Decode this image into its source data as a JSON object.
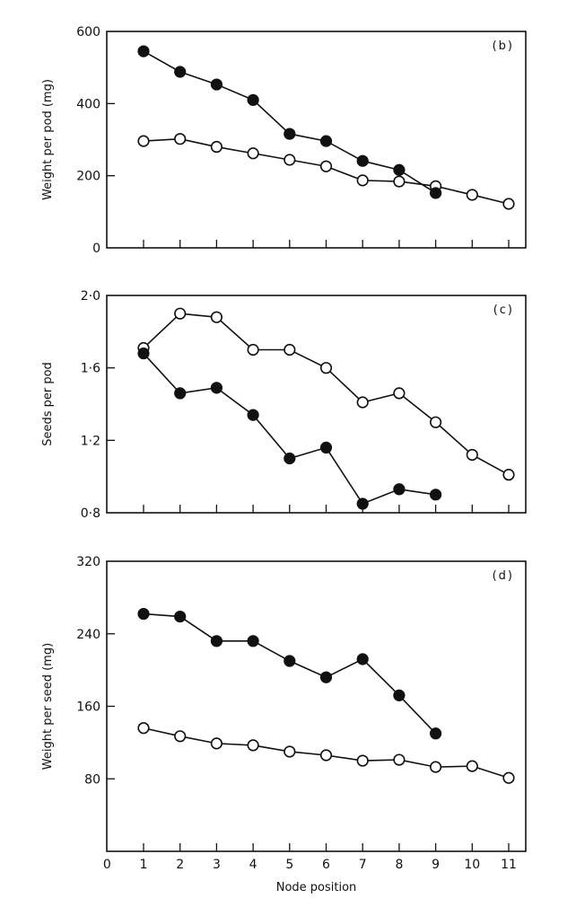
{
  "chart_data": [
    {
      "type": "line",
      "panel_label": "(b)",
      "ylabel": "Weight per pod (mg)",
      "ylim": [
        0,
        600
      ],
      "yticks": [
        0,
        200,
        400,
        600
      ],
      "ytick_labels": [
        "0",
        "200",
        "400",
        "600"
      ],
      "xlim": [
        0,
        11.5
      ],
      "xticks": [
        1,
        2,
        3,
        4,
        5,
        6,
        7,
        8,
        9,
        10,
        11
      ],
      "series": [
        {
          "name": "filled",
          "marker": "filled",
          "x": [
            1,
            2,
            3,
            4,
            5,
            6,
            7,
            8,
            9
          ],
          "values": [
            545,
            488,
            453,
            410,
            316,
            296,
            241,
            216,
            152
          ]
        },
        {
          "name": "open",
          "marker": "open",
          "x": [
            1,
            2,
            3,
            4,
            5,
            6,
            7,
            8,
            9,
            10,
            11
          ],
          "values": [
            296,
            302,
            280,
            262,
            244,
            226,
            187,
            184,
            171,
            147,
            122
          ]
        }
      ]
    },
    {
      "type": "line",
      "panel_label": "(c)",
      "ylabel": "Seeds per pod",
      "ylim": [
        0.8,
        2.0
      ],
      "yticks": [
        0.8,
        1.2,
        1.6,
        2.0
      ],
      "ytick_labels": [
        "0·8",
        "1·2",
        "1·6",
        "2·0"
      ],
      "xlim": [
        0,
        11.5
      ],
      "xticks": [
        1,
        2,
        3,
        4,
        5,
        6,
        7,
        8,
        9,
        10,
        11
      ],
      "series": [
        {
          "name": "filled",
          "marker": "filled",
          "x": [
            1,
            2,
            3,
            4,
            5,
            6,
            7,
            8,
            9
          ],
          "values": [
            1.68,
            1.46,
            1.49,
            1.34,
            1.1,
            1.16,
            0.85,
            0.93,
            0.9
          ]
        },
        {
          "name": "open",
          "marker": "open",
          "x": [
            1,
            2,
            3,
            4,
            5,
            6,
            7,
            8,
            9,
            10,
            11
          ],
          "values": [
            1.71,
            1.9,
            1.88,
            1.7,
            1.7,
            1.6,
            1.41,
            1.46,
            1.3,
            1.12,
            1.01
          ]
        }
      ]
    },
    {
      "type": "line",
      "panel_label": "(d)",
      "ylabel": "Weight per seed (mg)",
      "xlabel": "Node position",
      "ylim": [
        0,
        320
      ],
      "yticks": [
        80,
        160,
        240,
        320
      ],
      "ytick_labels": [
        "80",
        "160",
        "240",
        "320"
      ],
      "xlim": [
        0,
        11.5
      ],
      "xticks": [
        0,
        1,
        2,
        3,
        4,
        5,
        6,
        7,
        8,
        9,
        10,
        11
      ],
      "xtick_labels": [
        "0",
        "1",
        "2",
        "3",
        "4",
        "5",
        "6",
        "7",
        "8",
        "9",
        "10",
        "11"
      ],
      "series": [
        {
          "name": "filled",
          "marker": "filled",
          "x": [
            1,
            2,
            3,
            4,
            5,
            6,
            7,
            8,
            9
          ],
          "values": [
            262,
            259,
            232,
            232,
            210,
            192,
            212,
            172,
            130
          ]
        },
        {
          "name": "open",
          "marker": "open",
          "x": [
            1,
            2,
            3,
            4,
            5,
            6,
            7,
            8,
            9,
            10,
            11
          ],
          "values": [
            136,
            127,
            119,
            117,
            110,
            106,
            100,
            101,
            93,
            94,
            81
          ]
        }
      ]
    }
  ]
}
